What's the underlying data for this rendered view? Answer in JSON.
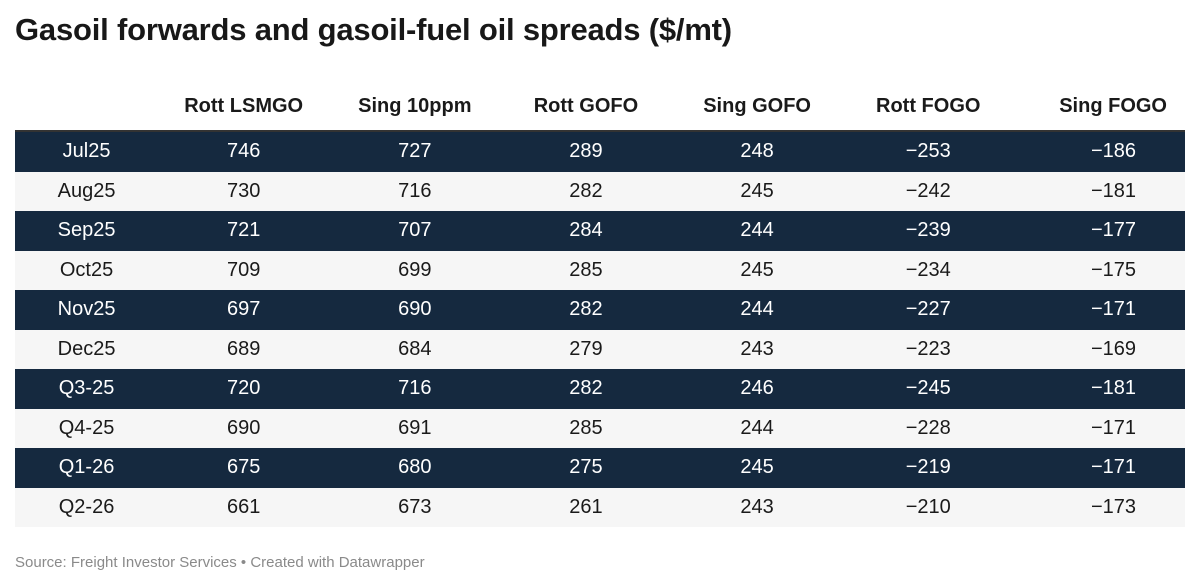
{
  "chart_data": {
    "type": "table",
    "title": "Gasoil forwards and gasoil-fuel oil spreads ($/mt)",
    "columns": [
      "",
      "Rott LSMGO",
      "Sing 10ppm",
      "Rott GOFO",
      "Sing GOFO",
      "Rott FOGO",
      "Sing FOGO"
    ],
    "rows": [
      [
        "Jul25",
        "746",
        "727",
        "289",
        "248",
        "−253",
        "−186"
      ],
      [
        "Aug25",
        "730",
        "716",
        "282",
        "245",
        "−242",
        "−181"
      ],
      [
        "Sep25",
        "721",
        "707",
        "284",
        "244",
        "−239",
        "−177"
      ],
      [
        "Oct25",
        "709",
        "699",
        "285",
        "245",
        "−234",
        "−175"
      ],
      [
        "Nov25",
        "697",
        "690",
        "282",
        "244",
        "−227",
        "−171"
      ],
      [
        "Dec25",
        "689",
        "684",
        "279",
        "243",
        "−223",
        "−169"
      ],
      [
        "Q3-25",
        "720",
        "716",
        "282",
        "246",
        "−245",
        "−181"
      ],
      [
        "Q4-25",
        "690",
        "691",
        "285",
        "244",
        "−228",
        "−171"
      ],
      [
        "Q1-26",
        "675",
        "680",
        "275",
        "245",
        "−219",
        "−171"
      ],
      [
        "Q2-26",
        "661",
        "673",
        "261",
        "243",
        "−210",
        "−173"
      ]
    ],
    "row_colors": {
      "dark": "#15293f",
      "light": "#f6f6f6"
    },
    "source": "Source: Freight Investor Services • Created with Datawrapper"
  }
}
